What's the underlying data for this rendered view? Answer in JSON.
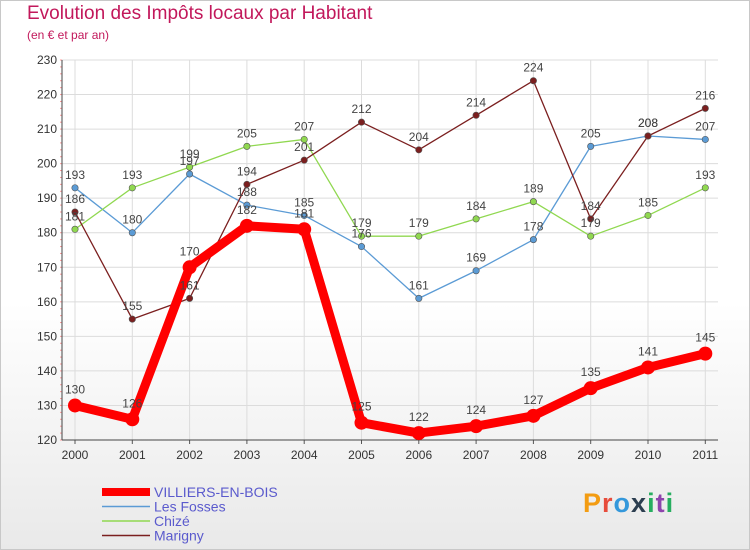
{
  "chart_data": {
    "type": "line",
    "title": "Evolution des Impôts locaux par Habitant",
    "subtitle": "(en € et par an)",
    "categories": [
      "2000",
      "2001",
      "2002",
      "2003",
      "2004",
      "2005",
      "2006",
      "2007",
      "2008",
      "2009",
      "2010",
      "2011"
    ],
    "ylim": [
      120,
      230
    ],
    "yticks": [
      120,
      130,
      140,
      150,
      160,
      170,
      180,
      190,
      200,
      210,
      220,
      230
    ],
    "grid": true,
    "series": [
      {
        "name": "VILLIERS-EN-BOIS",
        "color": "#ff0000",
        "values": [
          130,
          126,
          170,
          182,
          181,
          125,
          122,
          124,
          127,
          135,
          141,
          145
        ]
      },
      {
        "name": "Les Fosses",
        "color": "#5b9bd5",
        "values": [
          193,
          180,
          197,
          188,
          185,
          176,
          161,
          169,
          178,
          205,
          208,
          207
        ]
      },
      {
        "name": "Chizé",
        "color": "#90d850",
        "values": [
          181,
          193,
          199,
          205,
          207,
          179,
          179,
          184,
          189,
          179,
          185,
          193
        ]
      },
      {
        "name": "Marigny",
        "color": "#7b1f1f",
        "values": [
          186,
          155,
          161,
          194,
          201,
          212,
          204,
          214,
          224,
          184,
          208,
          216
        ]
      }
    ],
    "legend_position": "bottom-left"
  },
  "watermark": {
    "text": "Proxiti"
  }
}
